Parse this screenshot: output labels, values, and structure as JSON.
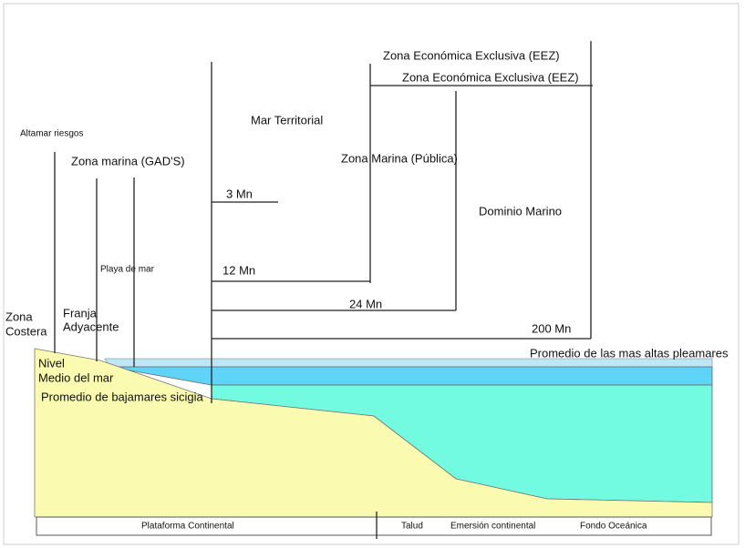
{
  "diagram": {
    "zones": {
      "eez_1": "Zona Económica Exclusiva (EEZ)",
      "eez_2": "Zona Económica Exclusiva (EEZ)",
      "mar_territorial": "Mar Territorial",
      "altamar": "Altamar riesgos",
      "zona_marina_gads": "Zona marina (GAD'S)",
      "zona_marina_publica": "Zona Marina (Pública)",
      "dominio_marino": "Dominio Marino",
      "playa_de_mar": "Playa de mar",
      "franja": [
        "Franja",
        "Adyacente"
      ],
      "zona_costera": [
        "Zona",
        "Costera"
      ]
    },
    "distances": [
      "3 Mn",
      "12 Mn",
      "24 Mn",
      "200 Mn"
    ],
    "levels": {
      "pleamares": "Promedio de las mas altas pleamares",
      "nivel_medio": [
        "Nivel",
        "Medio del mar"
      ],
      "bajamares": "Promedio de bajamares sicigia"
    },
    "bottom_bar": [
      "Plataforma Continental",
      "Talud",
      "Emersión continental",
      "Fondo Oceánica"
    ]
  }
}
